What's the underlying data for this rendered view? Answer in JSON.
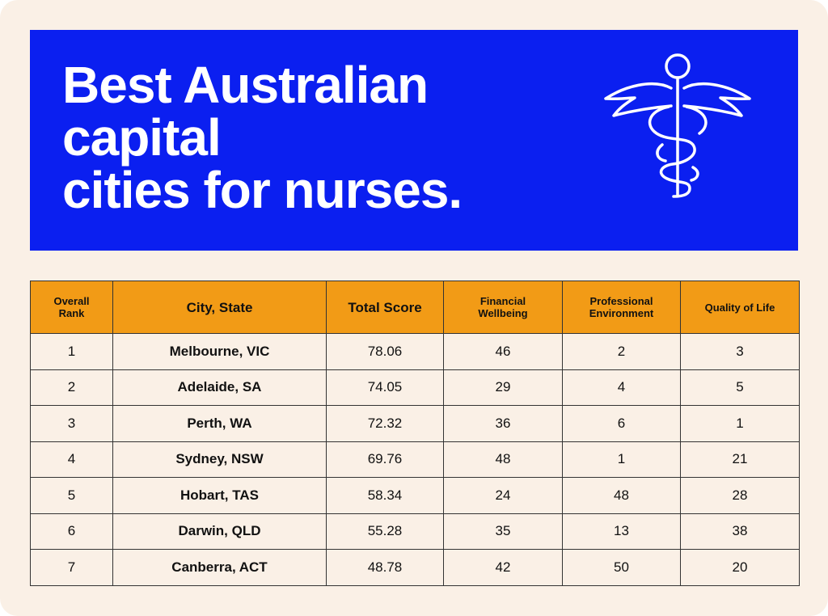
{
  "header": {
    "title_lines": [
      "Best Australian",
      "capital",
      "cities for nurses."
    ]
  },
  "table": {
    "columns": [
      "Overall Rank",
      "City, State",
      "Total Score",
      "Financial Wellbeing",
      "Professional Environment",
      "Quality of Life"
    ],
    "rows": [
      [
        1,
        "Melbourne, VIC",
        78.06,
        46,
        2,
        3
      ],
      [
        2,
        "Adelaide, SA",
        74.05,
        29,
        4,
        5
      ],
      [
        3,
        "Perth, WA",
        72.32,
        36,
        6,
        1
      ],
      [
        4,
        "Sydney, NSW",
        69.76,
        48,
        1,
        21
      ],
      [
        5,
        "Hobart, TAS",
        58.34,
        24,
        48,
        28
      ],
      [
        6,
        "Darwin, QLD",
        55.28,
        35,
        13,
        38
      ],
      [
        7,
        "Canberra, ACT",
        48.78,
        42,
        50,
        20
      ]
    ]
  }
}
